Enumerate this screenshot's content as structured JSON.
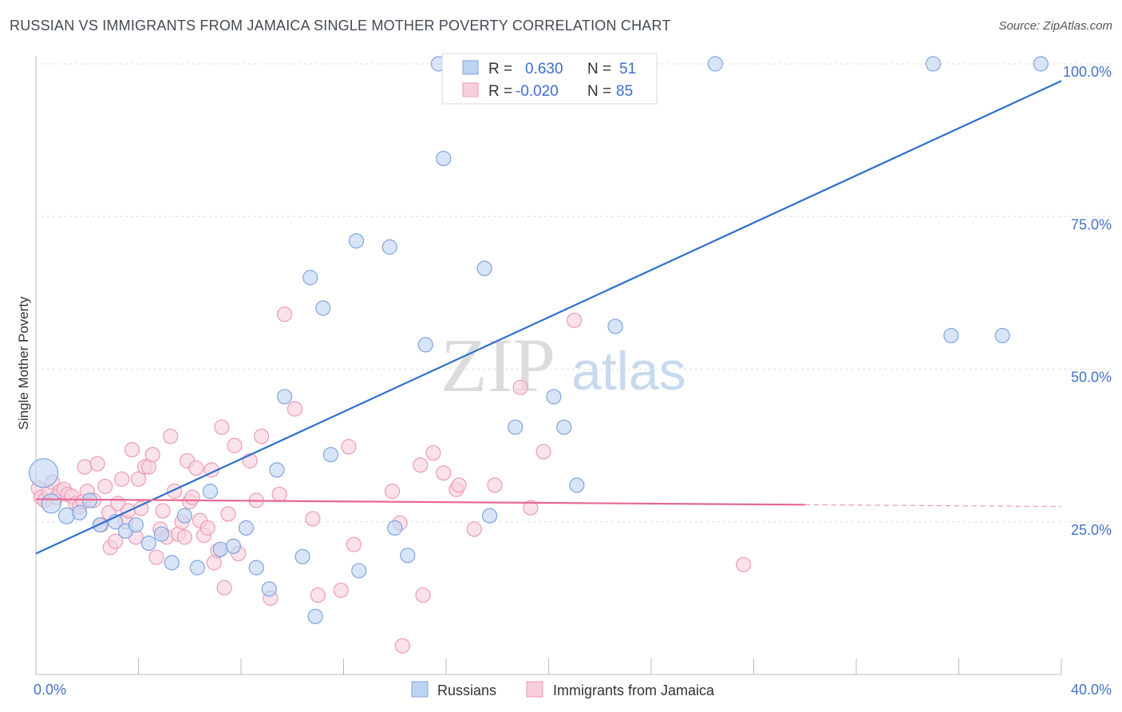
{
  "title": "RUSSIAN VS IMMIGRANTS FROM JAMAICA SINGLE MOTHER POVERTY CORRELATION CHART",
  "source": "Source: ZipAtlas.com",
  "watermark": {
    "zip": "ZIP",
    "atlas": "atlas"
  },
  "chart_data": {
    "type": "scatter",
    "ylabel": "Single Mother Poverty",
    "xlim": [
      0,
      40
    ],
    "ylim": [
      0,
      102
    ],
    "x_tick_labels": [
      "0.0%",
      "40.0%"
    ],
    "y_ticks": [
      25,
      50,
      75,
      100
    ],
    "y_tick_labels": [
      "25.0%",
      "50.0%",
      "75.0%",
      "100.0%"
    ],
    "grid": "horizontal dashed",
    "legend_top": [
      {
        "r_label": "R =",
        "r_value": "0.630",
        "n_label": "N =",
        "n_value": "51"
      },
      {
        "r_label": "R =",
        "r_value": "-0.020",
        "n_label": "N =",
        "n_value": "85"
      }
    ],
    "legend_bottom": [
      "Russians",
      "Immigrants from Jamaica"
    ],
    "series": [
      {
        "name": "Russians",
        "color": "#6f9fe0",
        "trend": {
          "x0": 0,
          "y0": 19.8,
          "x1": 40,
          "y1": 97.2,
          "color": "#2e6fcf"
        },
        "points": [
          [
            0.3,
            33,
            18
          ],
          [
            0.6,
            28,
            12
          ],
          [
            1.2,
            26,
            10
          ],
          [
            1.7,
            26.5,
            9
          ],
          [
            2.1,
            28.5,
            9
          ],
          [
            2.5,
            24.5,
            9
          ],
          [
            3.1,
            25,
            9
          ],
          [
            3.5,
            23.5,
            9
          ],
          [
            3.9,
            24.5,
            9
          ],
          [
            4.4,
            21.5,
            9
          ],
          [
            4.9,
            23,
            9
          ],
          [
            5.3,
            18.3,
            9
          ],
          [
            5.8,
            26,
            9
          ],
          [
            6.3,
            17.5,
            9
          ],
          [
            6.8,
            30,
            9
          ],
          [
            7.2,
            20.5,
            9
          ],
          [
            7.7,
            21,
            9
          ],
          [
            8.2,
            24,
            9
          ],
          [
            8.6,
            17.5,
            9
          ],
          [
            9.1,
            14,
            9
          ],
          [
            9.4,
            33.5,
            9
          ],
          [
            9.7,
            45.5,
            9
          ],
          [
            10.4,
            19.3,
            9
          ],
          [
            10.7,
            65,
            9
          ],
          [
            10.9,
            9.5,
            9
          ],
          [
            11.5,
            36,
            9
          ],
          [
            11.2,
            60,
            9
          ],
          [
            12.5,
            71,
            9
          ],
          [
            12.6,
            17,
            9
          ],
          [
            13.8,
            70,
            9
          ],
          [
            14.0,
            24,
            9
          ],
          [
            14.5,
            19.5,
            9
          ],
          [
            15.2,
            54,
            9
          ],
          [
            15.7,
            100,
            9
          ],
          [
            15.9,
            84.5,
            9
          ],
          [
            16.4,
            100,
            9
          ],
          [
            17.4,
            100,
            9
          ],
          [
            17.9,
            100,
            9
          ],
          [
            17.5,
            66.5,
            9
          ],
          [
            17.7,
            26,
            9
          ],
          [
            18.7,
            40.5,
            9
          ],
          [
            20.2,
            45.5,
            9
          ],
          [
            20.6,
            40.5,
            9
          ],
          [
            21.1,
            31,
            9
          ],
          [
            22.3,
            100,
            9
          ],
          [
            22.6,
            57,
            9
          ],
          [
            26.5,
            100,
            9
          ],
          [
            35.0,
            100,
            9
          ],
          [
            35.7,
            55.5,
            9
          ],
          [
            37.7,
            55.5,
            9
          ],
          [
            39.2,
            100,
            9
          ]
        ]
      },
      {
        "name": "Immigrants from Jamaica",
        "color": "#f09ab5",
        "trend": {
          "x0": 0,
          "y0": 28.7,
          "x1": 30,
          "y1": 27.8,
          "dash_x1": 40,
          "dash_y1": 27.5,
          "color": "#e8678f"
        },
        "points": [
          [
            0.1,
            30.5,
            9
          ],
          [
            0.2,
            29,
            9
          ],
          [
            0.35,
            28.5,
            9
          ],
          [
            0.5,
            30,
            9
          ],
          [
            0.65,
            31.5,
            9
          ],
          [
            0.8,
            29,
            9
          ],
          [
            0.95,
            30,
            9
          ],
          [
            1.1,
            30.3,
            9
          ],
          [
            1.25,
            29.5,
            9
          ],
          [
            1.4,
            29.2,
            9
          ],
          [
            1.55,
            28,
            9
          ],
          [
            1.7,
            27.5,
            9
          ],
          [
            1.85,
            28.3,
            9
          ],
          [
            1.9,
            34,
            9
          ],
          [
            2.0,
            30,
            9
          ],
          [
            2.25,
            28.5,
            9
          ],
          [
            2.4,
            34.5,
            9
          ],
          [
            2.55,
            24.5,
            9
          ],
          [
            2.7,
            30.8,
            9
          ],
          [
            2.85,
            26.5,
            9
          ],
          [
            2.9,
            20.8,
            9
          ],
          [
            3.1,
            21.8,
            9
          ],
          [
            3.2,
            28,
            9
          ],
          [
            3.35,
            32,
            9
          ],
          [
            3.5,
            25,
            9
          ],
          [
            3.6,
            26.8,
            9
          ],
          [
            3.75,
            36.8,
            9
          ],
          [
            3.9,
            22.5,
            9
          ],
          [
            4.0,
            32,
            9
          ],
          [
            4.1,
            27.2,
            9
          ],
          [
            4.25,
            34,
            9
          ],
          [
            4.4,
            34,
            9
          ],
          [
            4.55,
            36,
            9
          ],
          [
            4.7,
            19.2,
            9
          ],
          [
            4.85,
            23.8,
            9
          ],
          [
            4.95,
            26.8,
            9
          ],
          [
            5.1,
            22.5,
            9
          ],
          [
            5.25,
            39,
            9
          ],
          [
            5.4,
            30,
            9
          ],
          [
            5.55,
            23,
            9
          ],
          [
            5.7,
            25,
            9
          ],
          [
            5.8,
            22.5,
            9
          ],
          [
            5.9,
            35,
            9
          ],
          [
            6.0,
            28.3,
            9
          ],
          [
            6.1,
            29,
            9
          ],
          [
            6.25,
            33.8,
            9
          ],
          [
            6.4,
            25.2,
            9
          ],
          [
            6.55,
            22.8,
            9
          ],
          [
            6.7,
            24,
            9
          ],
          [
            6.85,
            33.5,
            9
          ],
          [
            6.95,
            18.3,
            9
          ],
          [
            7.1,
            20.3,
            9
          ],
          [
            7.25,
            40.5,
            9
          ],
          [
            7.35,
            14.2,
            9
          ],
          [
            7.5,
            26.3,
            9
          ],
          [
            7.75,
            37.5,
            9
          ],
          [
            7.9,
            19.8,
            9
          ],
          [
            8.35,
            35,
            9
          ],
          [
            8.6,
            28.5,
            9
          ],
          [
            8.8,
            39,
            9
          ],
          [
            9.15,
            12.5,
            9
          ],
          [
            9.5,
            29.5,
            9
          ],
          [
            9.7,
            59,
            9
          ],
          [
            10.1,
            43.5,
            9
          ],
          [
            10.8,
            25.5,
            9
          ],
          [
            11.0,
            13,
            9
          ],
          [
            11.9,
            13.8,
            9
          ],
          [
            12.2,
            37.3,
            9
          ],
          [
            12.4,
            21.3,
            9
          ],
          [
            13.9,
            30,
            9
          ],
          [
            14.2,
            24.8,
            9
          ],
          [
            14.3,
            4.7,
            9
          ],
          [
            15.0,
            34.3,
            9
          ],
          [
            15.1,
            13,
            9
          ],
          [
            15.5,
            36.3,
            9
          ],
          [
            15.9,
            33,
            9
          ],
          [
            16.4,
            30.3,
            9
          ],
          [
            16.5,
            31,
            9
          ],
          [
            17.1,
            23.8,
            9
          ],
          [
            17.9,
            31,
            9
          ],
          [
            18.9,
            47,
            9
          ],
          [
            19.3,
            27.3,
            9
          ],
          [
            19.8,
            36.5,
            9
          ],
          [
            21.0,
            58,
            9
          ],
          [
            27.6,
            18,
            9
          ]
        ]
      }
    ]
  }
}
